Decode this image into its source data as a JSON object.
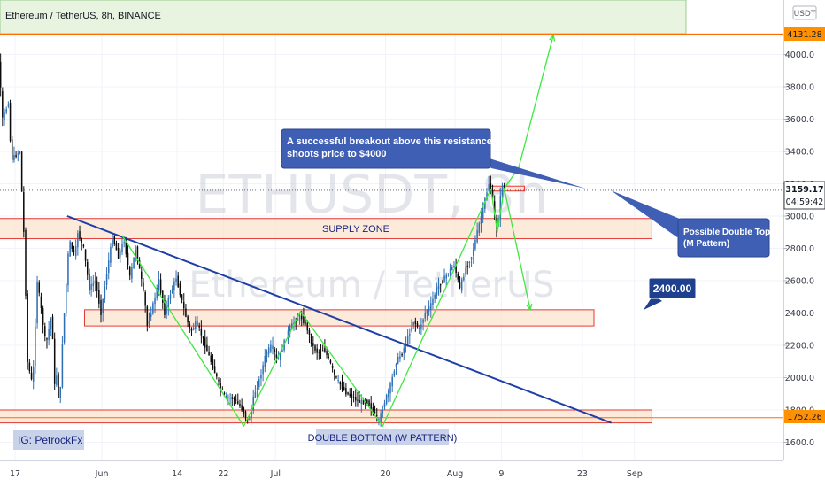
{
  "header": {
    "title": "Ethereum / TetherUS, 8h, BINANCE"
  },
  "currency_badge": "USDT",
  "watermark": {
    "symbol": "ETHUSDT, 8h",
    "name": "Ethereum / TetherUS"
  },
  "price_tags": {
    "target": "4131.28",
    "current": "3159.17",
    "countdown": "04:59:42",
    "support": "1752.26"
  },
  "annotations": {
    "breakout": "A successful breakout above this resistance shoots price to $4000",
    "breakout_lines": [
      "A successful breakout above this resistance",
      "shoots price to $4000"
    ],
    "double_top": "Possible Double Top (M Pattern)",
    "double_top_lines": [
      "Possible Double Top",
      "(M Pattern)"
    ],
    "target_2400": "2400.00",
    "supply_zone": "SUPPLY ZONE",
    "double_bottom": "DOUBLE BOTTOM (W PATTERN)",
    "author": "IG: PetrockFx"
  },
  "colors": {
    "up_candle": "#2f6fb4",
    "down_candle": "#0b0b0b",
    "green_path": "#3ee83e",
    "trendline": "#1f3fa8",
    "zone_fill": "#fbe4cf",
    "zone_border": "#e53935",
    "annotation_fill": "#3f5fb4",
    "label_fill": "#c8d3ea",
    "target_line": "#ff6d00"
  },
  "chart_data": {
    "type": "candlestick",
    "ylim": [
      1500,
      4150
    ],
    "y_ticks": [
      1600,
      1800,
      2000,
      2200,
      2400,
      2600,
      2800,
      3000,
      3200,
      3400,
      3600,
      3800,
      4000
    ],
    "x_ticks": [
      {
        "label": "17",
        "day": 17
      },
      {
        "label": "Jun",
        "day": 32
      },
      {
        "label": "14",
        "day": 45
      },
      {
        "label": "22",
        "day": 53
      },
      {
        "label": "Jul",
        "day": 62
      },
      {
        "label": "20",
        "day": 81
      },
      {
        "label": "Aug",
        "day": 93
      },
      {
        "label": "9",
        "day": 101
      },
      {
        "label": "23",
        "day": 115
      },
      {
        "label": "Sep",
        "day": 124
      }
    ],
    "price_path": [
      [
        12,
        4150
      ],
      [
        13,
        3900
      ],
      [
        14,
        4150
      ],
      [
        15,
        3600
      ],
      [
        16,
        3700
      ],
      [
        16.5,
        3350
      ],
      [
        18,
        3400
      ],
      [
        18.8,
        2800
      ],
      [
        19.3,
        2100
      ],
      [
        20.2,
        1950
      ],
      [
        21,
        2600
      ],
      [
        22.5,
        2200
      ],
      [
        23.5,
        2400
      ],
      [
        24,
        1950
      ],
      [
        24.5,
        2050
      ],
      [
        24.8,
        1752
      ],
      [
        25.3,
        2200
      ],
      [
        26.5,
        2850
      ],
      [
        27.5,
        2750
      ],
      [
        28,
        2900
      ],
      [
        29,
        2800
      ],
      [
        30,
        2550
      ],
      [
        31,
        2600
      ],
      [
        32,
        2400
      ],
      [
        33,
        2650
      ],
      [
        34,
        2870
      ],
      [
        35,
        2750
      ],
      [
        36,
        2850
      ],
      [
        37,
        2620
      ],
      [
        38,
        2800
      ],
      [
        39.5,
        2500
      ],
      [
        40,
        2320
      ],
      [
        41,
        2450
      ],
      [
        42,
        2600
      ],
      [
        43,
        2400
      ],
      [
        44,
        2520
      ],
      [
        45,
        2620
      ],
      [
        46.5,
        2400
      ],
      [
        47.5,
        2280
      ],
      [
        48.5,
        2350
      ],
      [
        50,
        2200
      ],
      [
        51.5,
        2050
      ],
      [
        52.5,
        1950
      ],
      [
        53.5,
        1880
      ],
      [
        55,
        1870
      ],
      [
        56.5,
        1800
      ],
      [
        57.5,
        1720
      ],
      [
        58.5,
        1900
      ],
      [
        59.5,
        2000
      ],
      [
        60.5,
        2150
      ],
      [
        61.5,
        2200
      ],
      [
        62.5,
        2100
      ],
      [
        63.5,
        2200
      ],
      [
        64.5,
        2300
      ],
      [
        65.5,
        2350
      ],
      [
        66.5,
        2380
      ],
      [
        67.5,
        2320
      ],
      [
        68.5,
        2200
      ],
      [
        69.5,
        2150
      ],
      [
        70.5,
        2180
      ],
      [
        71.5,
        2100
      ],
      [
        72.5,
        2000
      ],
      [
        73.5,
        1950
      ],
      [
        74.5,
        1900
      ],
      [
        75.5,
        1880
      ],
      [
        76.5,
        1850
      ],
      [
        78,
        1850
      ],
      [
        79,
        1800
      ],
      [
        80,
        1730
      ],
      [
        81,
        1850
      ],
      [
        82,
        1950
      ],
      [
        83,
        2100
      ],
      [
        84,
        2150
      ],
      [
        85,
        2250
      ],
      [
        86,
        2350
      ],
      [
        87,
        2300
      ],
      [
        88,
        2400
      ],
      [
        89,
        2450
      ],
      [
        90,
        2550
      ],
      [
        91,
        2600
      ],
      [
        92,
        2650
      ],
      [
        93,
        2700
      ],
      [
        94,
        2550
      ],
      [
        95,
        2680
      ],
      [
        96,
        2750
      ],
      [
        97,
        2900
      ],
      [
        98,
        3050
      ],
      [
        99,
        3200
      ],
      [
        99.5,
        3160
      ],
      [
        100.2,
        2900
      ],
      [
        100.8,
        3020
      ],
      [
        101.2,
        3210
      ],
      [
        101.6,
        3159
      ]
    ],
    "zones": [
      {
        "name": "supply-zone",
        "label": "SUPPLY ZONE",
        "y": [
          2860,
          2985
        ],
        "x": [
          12.5,
          127
        ]
      },
      {
        "name": "mid-zone",
        "y": [
          2320,
          2420
        ],
        "x": [
          29,
          117
        ]
      },
      {
        "name": "bottom-zone",
        "y": [
          1720,
          1800
        ],
        "x": [
          13,
          127
        ]
      },
      {
        "name": "top-resistance",
        "y": [
          3155,
          3185
        ],
        "x": [
          99,
          105
        ]
      }
    ],
    "trendline": [
      [
        26,
        3000
      ],
      [
        120,
        1720
      ]
    ],
    "levels": {
      "target": 4131.28,
      "current": 3159.17,
      "support": 1752.26
    },
    "w_pattern": [
      [
        35.5,
        2880
      ],
      [
        56.5,
        1700
      ],
      [
        66.3,
        2410
      ],
      [
        80.5,
        1700
      ],
      [
        99.2,
        3170
      ]
    ],
    "m_pattern": [
      [
        99.2,
        3170
      ],
      [
        100.3,
        2900
      ],
      [
        101.5,
        3170
      ],
      [
        106,
        2420
      ]
    ],
    "breakout_path": [
      [
        101.5,
        3170
      ],
      [
        104,
        3300
      ],
      [
        110,
        4120
      ]
    ],
    "target_price": 2400.0
  }
}
